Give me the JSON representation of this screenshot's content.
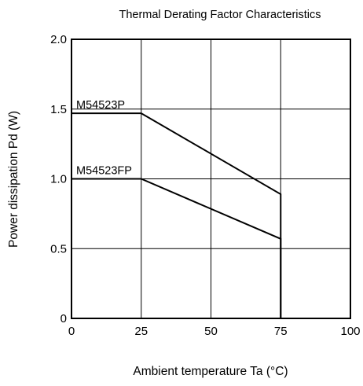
{
  "chart_data": {
    "type": "line",
    "title": "Thermal Derating Factor Characteristics",
    "xlabel": "Ambient temperature  Ta (°C)",
    "ylabel": "Power dissipation  Pd (W)",
    "xlim": [
      0,
      100
    ],
    "ylim": [
      0,
      2.0
    ],
    "x_ticks": [
      0,
      25,
      50,
      75,
      100
    ],
    "x_tick_labels": [
      "0",
      "25",
      "50",
      "75",
      "100"
    ],
    "y_ticks": [
      0,
      0.5,
      1.0,
      1.5,
      2.0
    ],
    "y_tick_labels": [
      "0",
      "0.5",
      "1.0",
      "1.5",
      "2.0"
    ],
    "grid": true,
    "legend": "none",
    "series": [
      {
        "name": "M54523P",
        "x": [
          0,
          25,
          75,
          75
        ],
        "y": [
          1.47,
          1.47,
          0.89,
          0
        ]
      },
      {
        "name": "M54523FP",
        "x": [
          0,
          25,
          75,
          75
        ],
        "y": [
          1.0,
          1.0,
          0.57,
          0
        ]
      }
    ]
  }
}
